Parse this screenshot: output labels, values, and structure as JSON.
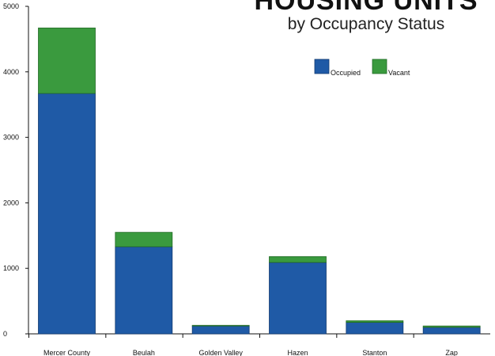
{
  "chart_data": {
    "type": "bar",
    "stacked": true,
    "title": "HOUSING UNITS",
    "subtitle": "by Occupancy Status",
    "xlabel": "",
    "ylabel": "",
    "ylim": [
      0,
      5000
    ],
    "yticks": [
      0,
      1000,
      2000,
      3000,
      4000,
      5000
    ],
    "grid": false,
    "legend_position": "top-right",
    "categories": [
      "Mercer County",
      "Beulah",
      "Golden Valley",
      "Hazen",
      "Stanton",
      "Zap"
    ],
    "series": [
      {
        "name": "Occupied",
        "color": "#1f5aa6",
        "values": [
          3670,
          1330,
          120,
          1090,
          175,
          100
        ]
      },
      {
        "name": "Vacant",
        "color": "#3a9a3e",
        "values": [
          1000,
          220,
          10,
          90,
          25,
          20
        ]
      }
    ]
  }
}
